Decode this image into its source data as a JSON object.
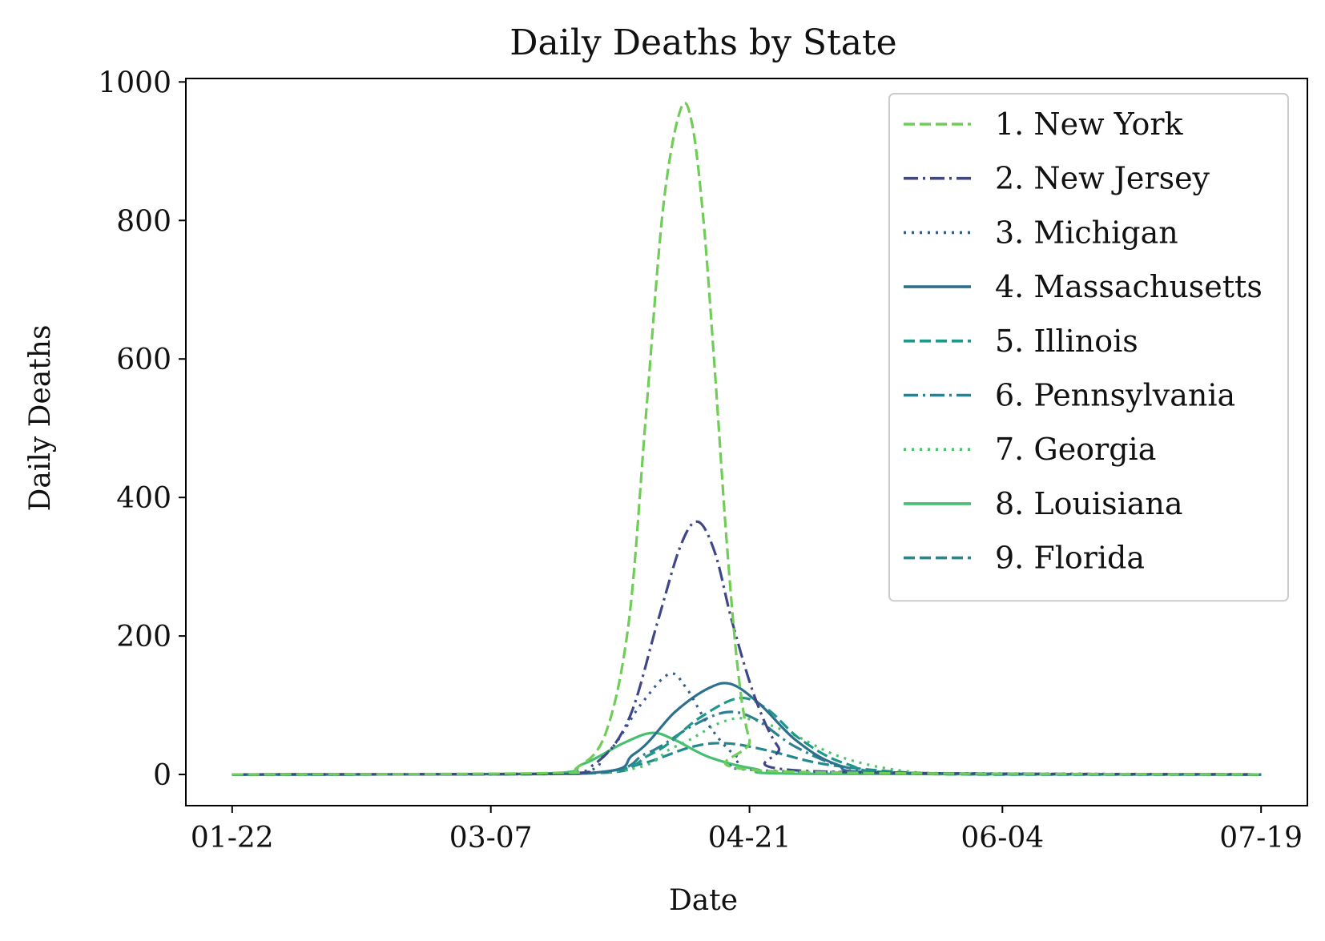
{
  "chart_data": {
    "type": "line",
    "title": "Daily Deaths by State",
    "xlabel": "Date",
    "ylabel": "Daily Deaths",
    "xlim": [
      "01-22",
      "07-19"
    ],
    "ylim": [
      -45,
      1005
    ],
    "x_ticks": [
      "01-22",
      "03-07",
      "04-21",
      "06-04",
      "07-19"
    ],
    "y_ticks": [
      0,
      200,
      400,
      600,
      800,
      1000
    ],
    "grid": false,
    "legend_position": "top-right",
    "series": [
      {
        "name": "1. New York",
        "color": "#6fcd58",
        "dash": "dashed",
        "points": [
          [
            "01-22",
            0
          ],
          [
            "03-17",
            2
          ],
          [
            "03-22",
            10
          ],
          [
            "03-27",
            60
          ],
          [
            "03-31",
            220
          ],
          [
            "04-03",
            520
          ],
          [
            "04-06",
            820
          ],
          [
            "04-09",
            960
          ],
          [
            "04-11",
            940
          ],
          [
            "04-13",
            800
          ],
          [
            "04-15",
            580
          ],
          [
            "04-17",
            340
          ],
          [
            "04-19",
            150
          ],
          [
            "04-21",
            50
          ],
          [
            "04-24",
            5
          ],
          [
            "07-19",
            0
          ]
        ]
      },
      {
        "name": "2. New Jersey",
        "color": "#3f4788",
        "dash": "dashdot",
        "points": [
          [
            "01-22",
            0
          ],
          [
            "03-17",
            1
          ],
          [
            "03-25",
            15
          ],
          [
            "03-31",
            80
          ],
          [
            "04-05",
            220
          ],
          [
            "04-09",
            330
          ],
          [
            "04-12",
            365
          ],
          [
            "04-15",
            320
          ],
          [
            "04-18",
            220
          ],
          [
            "04-22",
            110
          ],
          [
            "04-26",
            40
          ],
          [
            "05-01",
            5
          ],
          [
            "07-19",
            0
          ]
        ]
      },
      {
        "name": "3. Michigan",
        "color": "#355f8d",
        "dash": "dotted",
        "points": [
          [
            "01-22",
            0
          ],
          [
            "03-18",
            1
          ],
          [
            "03-27",
            30
          ],
          [
            "04-02",
            100
          ],
          [
            "04-07",
            145
          ],
          [
            "04-10",
            125
          ],
          [
            "04-14",
            70
          ],
          [
            "04-19",
            25
          ],
          [
            "04-26",
            5
          ],
          [
            "07-19",
            0
          ]
        ]
      },
      {
        "name": "4. Massachusetts",
        "color": "#2d718e",
        "dash": "solid",
        "points": [
          [
            "01-22",
            0
          ],
          [
            "03-22",
            1
          ],
          [
            "04-01",
            30
          ],
          [
            "04-08",
            90
          ],
          [
            "04-14",
            125
          ],
          [
            "04-18",
            130
          ],
          [
            "04-23",
            100
          ],
          [
            "04-29",
            50
          ],
          [
            "05-06",
            15
          ],
          [
            "05-16",
            2
          ],
          [
            "07-19",
            0
          ]
        ]
      },
      {
        "name": "5. Illinois",
        "color": "#1f988b",
        "dash": "dashed",
        "points": [
          [
            "01-22",
            0
          ],
          [
            "03-22",
            1
          ],
          [
            "04-04",
            30
          ],
          [
            "04-12",
            80
          ],
          [
            "04-19",
            110
          ],
          [
            "04-24",
            95
          ],
          [
            "04-30",
            50
          ],
          [
            "05-08",
            15
          ],
          [
            "05-20",
            2
          ],
          [
            "07-19",
            0
          ]
        ]
      },
      {
        "name": "6. Pennsylvania",
        "color": "#2c8090",
        "dash": "dashdot",
        "points": [
          [
            "01-22",
            0
          ],
          [
            "03-22",
            1
          ],
          [
            "04-03",
            30
          ],
          [
            "04-11",
            70
          ],
          [
            "04-17",
            90
          ],
          [
            "04-22",
            80
          ],
          [
            "04-29",
            40
          ],
          [
            "05-08",
            10
          ],
          [
            "05-20",
            1
          ],
          [
            "07-19",
            0
          ]
        ]
      },
      {
        "name": "7. Georgia",
        "color": "#4ec36b",
        "dash": "dotted",
        "points": [
          [
            "01-22",
            0
          ],
          [
            "03-25",
            2
          ],
          [
            "04-08",
            40
          ],
          [
            "04-16",
            75
          ],
          [
            "04-21",
            80
          ],
          [
            "04-28",
            60
          ],
          [
            "05-07",
            25
          ],
          [
            "05-18",
            5
          ],
          [
            "06-01",
            0
          ],
          [
            "07-19",
            0
          ]
        ]
      },
      {
        "name": "8. Louisiana",
        "color": "#45bf70",
        "dash": "solid",
        "points": [
          [
            "01-22",
            0
          ],
          [
            "03-15",
            1
          ],
          [
            "03-23",
            15
          ],
          [
            "03-30",
            45
          ],
          [
            "04-04",
            60
          ],
          [
            "04-08",
            50
          ],
          [
            "04-14",
            25
          ],
          [
            "04-22",
            8
          ],
          [
            "05-01",
            1
          ],
          [
            "07-19",
            0
          ]
        ]
      },
      {
        "name": "9. Florida",
        "color": "#23898e",
        "dash": "dashed",
        "points": [
          [
            "01-22",
            0
          ],
          [
            "03-22",
            1
          ],
          [
            "04-02",
            15
          ],
          [
            "04-11",
            40
          ],
          [
            "04-17",
            45
          ],
          [
            "04-24",
            35
          ],
          [
            "05-04",
            15
          ],
          [
            "05-18",
            3
          ],
          [
            "06-01",
            0
          ],
          [
            "07-19",
            0
          ]
        ]
      }
    ]
  }
}
